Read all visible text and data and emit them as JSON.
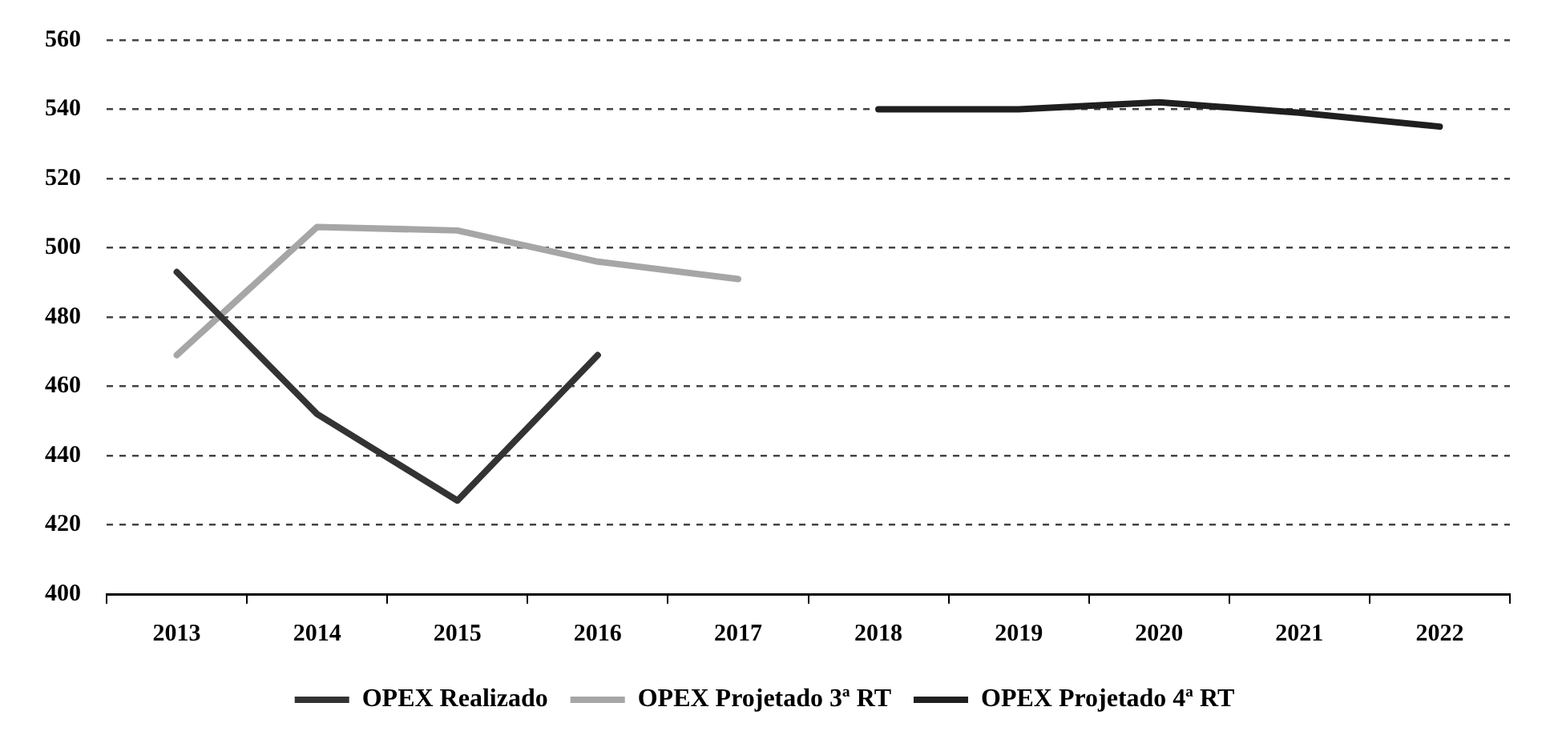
{
  "chart_data": {
    "type": "line",
    "categories": [
      "2013",
      "2014",
      "2015",
      "2016",
      "2017",
      "2018",
      "2019",
      "2020",
      "2021",
      "2022"
    ],
    "series": [
      {
        "name": "OPEX Realizado",
        "color": "#333333",
        "values": [
          493,
          452,
          427,
          469,
          null,
          null,
          null,
          null,
          null,
          null
        ]
      },
      {
        "name": "OPEX Projetado 3ª RT",
        "color": "#a6a6a6",
        "values": [
          469,
          506,
          505,
          496,
          491,
          null,
          null,
          null,
          null,
          null
        ]
      },
      {
        "name": "OPEX Projetado 4ª RT",
        "color": "#1f1f1f",
        "values": [
          null,
          null,
          null,
          null,
          null,
          540,
          540,
          542,
          539,
          535
        ]
      }
    ],
    "ylim": [
      400,
      560
    ],
    "yticks": [
      400,
      420,
      440,
      460,
      480,
      500,
      520,
      540,
      560
    ],
    "grid": "y",
    "legend": "bottom",
    "line_style": "solid",
    "marker": "none"
  }
}
